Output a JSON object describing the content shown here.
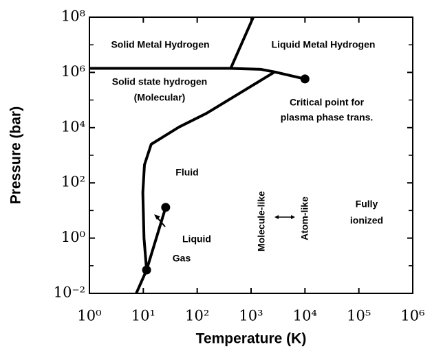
{
  "chart_data": {
    "type": "line",
    "log_x": true,
    "log_y": true,
    "x_label": "Temperature (K)",
    "y_label": "Pressure (bar)",
    "xlim": [
      1,
      1000000
    ],
    "ylim": [
      0.01,
      100000000
    ],
    "xticks": [
      {
        "value": 1,
        "label": "10⁰"
      },
      {
        "value": 10,
        "label": "10¹"
      },
      {
        "value": 100,
        "label": "10²"
      },
      {
        "value": 1000,
        "label": "10³"
      },
      {
        "value": 10000,
        "label": "10⁴"
      },
      {
        "value": 100000,
        "label": "10⁵"
      },
      {
        "value": 1000000,
        "label": "10⁶"
      }
    ],
    "yticks": [
      {
        "value": 0.01,
        "label": "10⁻²"
      },
      {
        "value": 1,
        "label": "10⁰"
      },
      {
        "value": 100,
        "label": "10²"
      },
      {
        "value": 10000,
        "label": "10⁴"
      },
      {
        "value": 1000000,
        "label": "10⁶"
      },
      {
        "value": 100000000,
        "label": "10⁸"
      }
    ],
    "minor_yticks": [
      0.1,
      10,
      1000,
      100000,
      10000000
    ],
    "series": [
      {
        "color": "#000",
        "x": [
          415,
          1100
        ],
        "y": [
          1350000,
          100000000
        ]
      },
      {
        "color": "#000",
        "x": [
          1,
          400,
          1500,
          3000,
          10000
        ],
        "y": [
          1400000,
          1400000,
          1300000,
          1000000,
          580000
        ]
      },
      {
        "color": "#000",
        "x": [
          2650,
          149,
          46,
          14,
          10.5,
          9.8,
          10.3,
          11.5
        ],
        "y": [
          1000000,
          33000,
          10500,
          2500,
          450,
          45,
          1,
          0.07
        ]
      },
      {
        "color": "#000",
        "x": [
          7.4,
          11.5,
          26
        ],
        "y": [
          0.01,
          0.07,
          13
        ]
      }
    ],
    "points": {
      "color": "#000",
      "x": [
        10000,
        11.5,
        26
      ],
      "y": [
        580000,
        0.07,
        13
      ]
    },
    "annotations": [
      "Solid Metal Hydrogen",
      "Liquid Metal Hydrogen",
      "Solid state hydrogen",
      "(Molecular)",
      "Critical point for",
      "plasma phase trans.",
      "Fluid",
      "Molecule-like",
      "Atom-like",
      "Fully",
      "ionized",
      "Liquid",
      "Gas"
    ]
  }
}
